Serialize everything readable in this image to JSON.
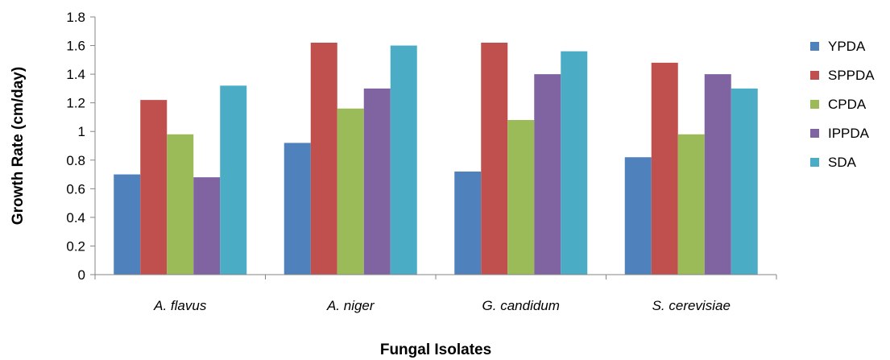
{
  "chart_data": {
    "type": "bar",
    "title": "",
    "xlabel": "Fungal Isolates",
    "ylabel": "Growth Rate (cm/day)",
    "categories": [
      "A. flavus",
      "A. niger",
      "G. candidum",
      "S. cerevisiae"
    ],
    "series": [
      {
        "name": "YPDA",
        "color": "#4F81BD",
        "values": [
          0.7,
          0.92,
          0.72,
          0.82
        ]
      },
      {
        "name": "SPPDA",
        "color": "#C0504D",
        "values": [
          1.22,
          1.62,
          1.62,
          1.48
        ]
      },
      {
        "name": "CPDA",
        "color": "#9BBB59",
        "values": [
          0.98,
          1.16,
          1.08,
          0.98
        ]
      },
      {
        "name": "IPPDA",
        "color": "#8064A2",
        "values": [
          0.68,
          1.3,
          1.4,
          1.4
        ]
      },
      {
        "name": "SDA",
        "color": "#4BACC6",
        "values": [
          1.32,
          1.6,
          1.56,
          1.3
        ]
      }
    ],
    "ylim": [
      0,
      1.8
    ],
    "yticks": [
      "0",
      "0.2",
      "0.4",
      "0.6",
      "0.8",
      "1",
      "1.2",
      "1.4",
      "1.6",
      "1.8"
    ],
    "grid": false,
    "legend_position": "right"
  }
}
